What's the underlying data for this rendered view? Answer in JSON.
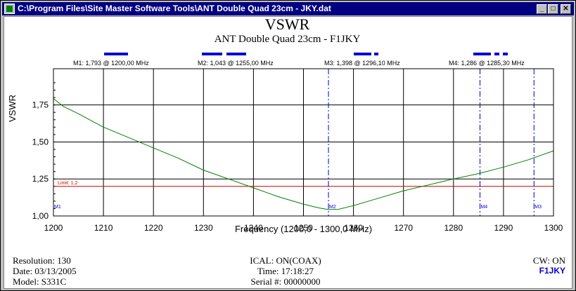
{
  "window": {
    "title": "C:\\Program Files\\Site Master Software Tools\\ANT Double Quad 23cm - JKY.dat",
    "minimize_glyph": "_",
    "maximize_glyph": "□",
    "close_glyph": "✕"
  },
  "chart": {
    "title": "VSWR",
    "subtitle": "ANT Double Quad 23cm - F1JKY",
    "ylabel": "VSWR",
    "xlabel": "Frequency (1200,0 - 1300,0 MHz)",
    "limit_label": "Limit: 1,2",
    "markers": [
      {
        "label": "M1: 1,793  @ 1200,00 MHz",
        "tag": "M1"
      },
      {
        "label": "M2: 1,043  @ 1255,00 MHz",
        "tag": "M2"
      },
      {
        "label": "M3: 1,398  @ 1296,10 MHz",
        "tag": "M3"
      },
      {
        "label": "M4: 1,286  @ 1285,30 MHz",
        "tag": "M4"
      }
    ]
  },
  "chart_data": {
    "type": "line",
    "title": "VSWR",
    "subtitle": "ANT Double Quad 23cm - F1JKY",
    "xlabel": "Frequency (1200,0 - 1300,0 MHz)",
    "ylabel": "VSWR",
    "xlim": [
      1200,
      1300
    ],
    "ylim": [
      1.0,
      1.9
    ],
    "x_ticks": [
      "1200",
      "1210",
      "1220",
      "1230",
      "1240",
      "1250",
      "1260",
      "1270",
      "1280",
      "1290",
      "1300"
    ],
    "y_ticks": [
      "1,00",
      "1,25",
      "1,50",
      "1,75"
    ],
    "grid": true,
    "limit": 1.2,
    "markers": [
      {
        "name": "M1",
        "x": 1200.0,
        "y": 1.793
      },
      {
        "name": "M2",
        "x": 1255.0,
        "y": 1.043
      },
      {
        "name": "M3",
        "x": 1296.1,
        "y": 1.398
      },
      {
        "name": "M4",
        "x": 1285.3,
        "y": 1.286
      }
    ],
    "series": [
      {
        "x": [
          1200,
          1202,
          1205,
          1210,
          1215,
          1220,
          1225,
          1230,
          1235,
          1240,
          1245,
          1250,
          1253,
          1255,
          1257,
          1260,
          1265,
          1270,
          1275,
          1280,
          1285,
          1290,
          1295,
          1300
        ],
        "y": [
          1.793,
          1.74,
          1.69,
          1.6,
          1.53,
          1.46,
          1.39,
          1.31,
          1.25,
          1.19,
          1.13,
          1.08,
          1.055,
          1.043,
          1.045,
          1.07,
          1.12,
          1.17,
          1.21,
          1.25,
          1.286,
          1.33,
          1.38,
          1.44
        ]
      }
    ]
  },
  "footer": {
    "left": [
      "Resolution:  130",
      "Date: 03/13/2005",
      "Model:  S331C"
    ],
    "center": [
      "ICAL:  ON(COAX)",
      "Time:  17:18:27",
      "Serial #:  00000000"
    ],
    "right_cw": "CW: ON",
    "right_call": "F1JKY"
  },
  "colors": {
    "trace": "#008000",
    "limit": "#cc0000",
    "marker": "#0000cc",
    "titlebar": "#000080"
  }
}
